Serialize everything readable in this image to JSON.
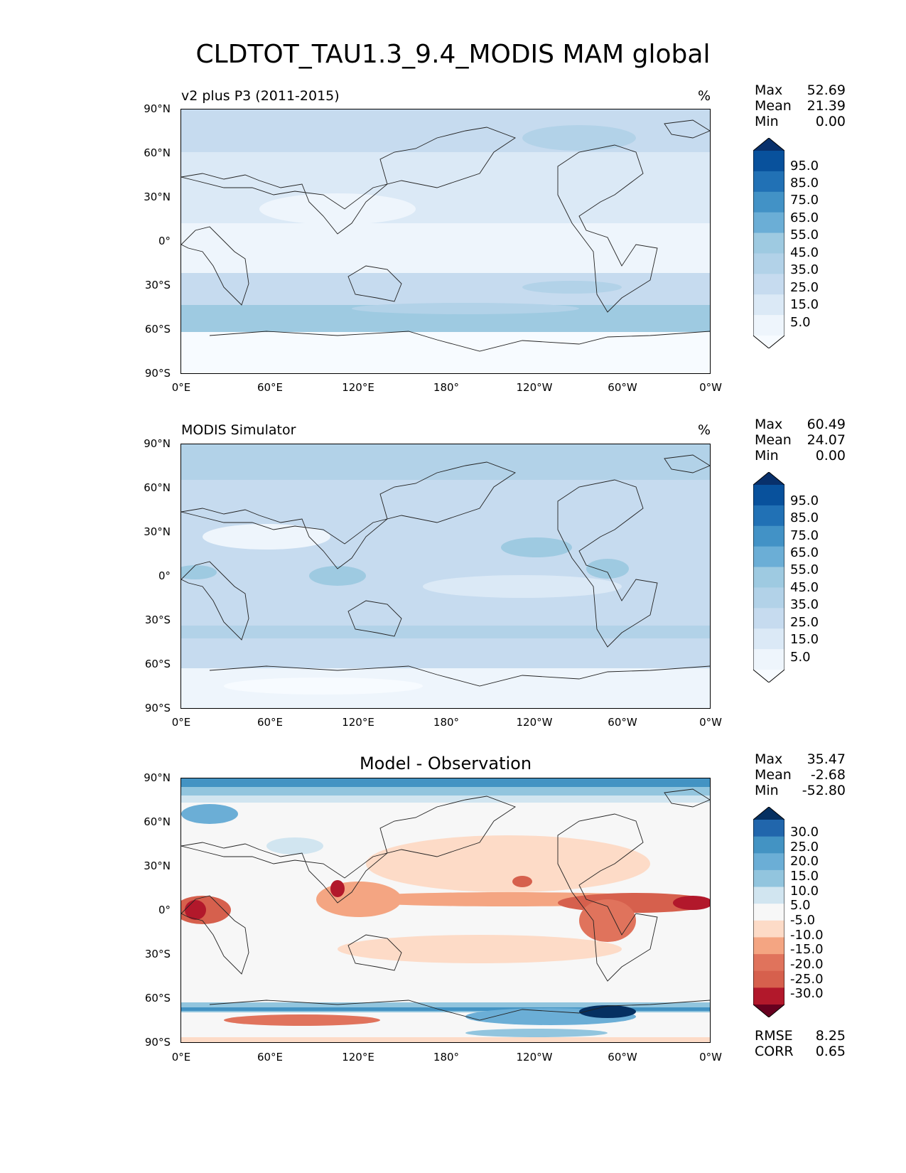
{
  "title": "CLDTOT_TAU1.3_9.4_MODIS MAM global",
  "lat_labels": [
    "90°N",
    "60°N",
    "30°N",
    "0°",
    "30°S",
    "60°S",
    "90°S"
  ],
  "lon_labels": [
    "0°E",
    "60°E",
    "120°E",
    "180°",
    "120°W",
    "60°W",
    "0°W"
  ],
  "panels": [
    {
      "title_left": "v2 plus P3 (2011-2015)",
      "title_right": "%",
      "stats": {
        "max_label": "Max",
        "max": "52.69",
        "mean_label": "Mean",
        "mean": "21.39",
        "min_label": "Min",
        "min": "0.00"
      },
      "colorbar": {
        "labels": [
          "95.0",
          "85.0",
          "75.0",
          "65.0",
          "55.0",
          "45.0",
          "35.0",
          "25.0",
          "15.0",
          "5.0"
        ],
        "colors": [
          "#08306b",
          "#08519c",
          "#2171b5",
          "#4292c6",
          "#6baed6",
          "#9ecae1",
          "#b2d2e8",
          "#c6dbef",
          "#dbe9f6",
          "#eef5fc",
          "#f7fbff"
        ]
      }
    },
    {
      "title_left": "MODIS Simulator",
      "title_right": "%",
      "stats": {
        "max_label": "Max",
        "max": "60.49",
        "mean_label": "Mean",
        "mean": "24.07",
        "min_label": "Min",
        "min": "0.00"
      },
      "colorbar": {
        "labels": [
          "95.0",
          "85.0",
          "75.0",
          "65.0",
          "55.0",
          "45.0",
          "35.0",
          "25.0",
          "15.0",
          "5.0"
        ],
        "colors": [
          "#08306b",
          "#08519c",
          "#2171b5",
          "#4292c6",
          "#6baed6",
          "#9ecae1",
          "#b2d2e8",
          "#c6dbef",
          "#dbe9f6",
          "#eef5fc",
          "#f7fbff"
        ]
      }
    },
    {
      "title_center": "Model - Observation",
      "stats": {
        "max_label": "Max",
        "max": "35.47",
        "mean_label": "Mean",
        "mean": "-2.68",
        "min_label": "Min",
        "min": "-52.80"
      },
      "metrics": {
        "rmse_label": "RMSE",
        "rmse": "8.25",
        "corr_label": "CORR",
        "corr": "0.65"
      },
      "colorbar": {
        "labels": [
          "30.0",
          "25.0",
          "20.0",
          "15.0",
          "10.0",
          "5.0",
          "-5.0",
          "-10.0",
          "-15.0",
          "-20.0",
          "-25.0",
          "-30.0"
        ],
        "colors": [
          "#053061",
          "#2166ac",
          "#4393c3",
          "#6baed6",
          "#92c5de",
          "#d1e5f0",
          "#f7f7f7",
          "#fddbc7",
          "#f4a582",
          "#e0735c",
          "#d6604d",
          "#b2182b",
          "#67001f"
        ]
      }
    }
  ]
}
